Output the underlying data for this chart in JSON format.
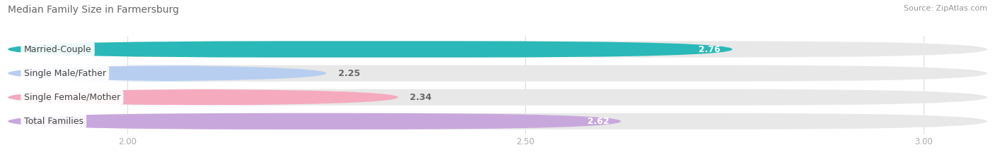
{
  "title": "Median Family Size in Farmersburg",
  "source": "Source: ZipAtlas.com",
  "categories": [
    "Married-Couple",
    "Single Male/Father",
    "Single Female/Mother",
    "Total Families"
  ],
  "values": [
    2.76,
    2.25,
    2.34,
    2.62
  ],
  "bar_colors": [
    "#2ab8b8",
    "#b8cef0",
    "#f5aabe",
    "#c8a8dc"
  ],
  "bar_bg_color": "#e8e8e8",
  "value_label_colors": [
    "#ffffff",
    "#666666",
    "#666666",
    "#ffffff"
  ],
  "xlim": [
    1.85,
    3.08
  ],
  "xticks": [
    2.0,
    2.5,
    3.0
  ],
  "xtick_labels": [
    "2.00",
    "2.50",
    "3.00"
  ],
  "bg_color": "#ffffff",
  "bar_height": 0.68,
  "title_fontsize": 10,
  "label_fontsize": 9,
  "value_fontsize": 9,
  "source_fontsize": 8,
  "title_color": "#666666",
  "source_color": "#999999",
  "grid_color": "#dddddd"
}
